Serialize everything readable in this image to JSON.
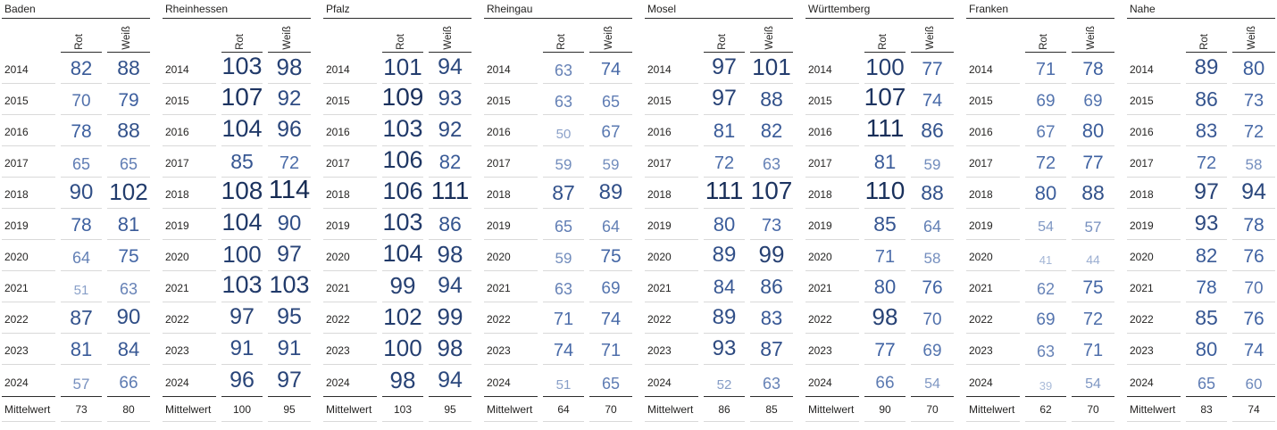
{
  "labels": {
    "mittelwert": "Mittelwert",
    "col_rot": "Rot",
    "col_weiss": "Weiß"
  },
  "colors": {
    "text": "#252423",
    "grid_dark": "#2b2b2b",
    "grid_light": "#d9d9d9",
    "value_scale_low": "#AABBD9",
    "value_scale_mid": "#3F62A3",
    "value_scale_high": "#152A52"
  },
  "chart_data": {
    "type": "table",
    "title": "",
    "columns": [
      "Rot",
      "Weiß"
    ],
    "years": [
      "2014",
      "2015",
      "2016",
      "2017",
      "2018",
      "2019",
      "2020",
      "2021",
      "2022",
      "2023",
      "2024"
    ],
    "value_range": [
      39,
      114
    ],
    "layout": {
      "panels_side_by_side": true,
      "value_font_scaled": true,
      "value_color_scaled": true
    },
    "regions": [
      {
        "name": "Baden",
        "rot": [
          82,
          70,
          78,
          65,
          90,
          78,
          64,
          51,
          87,
          81,
          57
        ],
        "weiss": [
          88,
          79,
          88,
          65,
          102,
          81,
          75,
          63,
          90,
          84,
          66
        ],
        "mittelwert_rot": 73,
        "mittelwert_weiss": 80
      },
      {
        "name": "Rheinhessen",
        "rot": [
          103,
          107,
          104,
          85,
          108,
          104,
          100,
          103,
          97,
          91,
          96
        ],
        "weiss": [
          98,
          92,
          96,
          72,
          114,
          90,
          97,
          103,
          95,
          91,
          97
        ],
        "mittelwert_rot": 100,
        "mittelwert_weiss": 95
      },
      {
        "name": "Pfalz",
        "rot": [
          101,
          109,
          103,
          106,
          106,
          103,
          104,
          99,
          102,
          100,
          98
        ],
        "weiss": [
          94,
          93,
          92,
          82,
          111,
          86,
          98,
          94,
          99,
          98,
          94
        ],
        "mittelwert_rot": 103,
        "mittelwert_weiss": 95
      },
      {
        "name": "Rheingau",
        "rot": [
          63,
          63,
          50,
          59,
          87,
          65,
          59,
          63,
          71,
          74,
          51
        ],
        "weiss": [
          74,
          65,
          67,
          59,
          89,
          64,
          75,
          69,
          74,
          71,
          65
        ],
        "mittelwert_rot": 64,
        "mittelwert_weiss": 70
      },
      {
        "name": "Mosel",
        "rot": [
          97,
          97,
          81,
          72,
          111,
          80,
          89,
          84,
          89,
          93,
          52
        ],
        "weiss": [
          101,
          88,
          82,
          63,
          107,
          73,
          99,
          86,
          83,
          87,
          63
        ],
        "mittelwert_rot": 86,
        "mittelwert_weiss": 85
      },
      {
        "name": "Württemberg",
        "rot": [
          100,
          107,
          111,
          81,
          110,
          85,
          71,
          80,
          98,
          77,
          66
        ],
        "weiss": [
          77,
          74,
          86,
          59,
          88,
          64,
          58,
          76,
          70,
          69,
          54
        ],
        "mittelwert_rot": 90,
        "mittelwert_weiss": 70
      },
      {
        "name": "Franken",
        "rot": [
          71,
          69,
          67,
          72,
          80,
          54,
          41,
          62,
          69,
          63,
          39
        ],
        "weiss": [
          78,
          69,
          80,
          77,
          88,
          57,
          44,
          75,
          72,
          71,
          54
        ],
        "mittelwert_rot": 62,
        "mittelwert_weiss": 70
      },
      {
        "name": "Nahe",
        "rot": [
          89,
          86,
          83,
          72,
          97,
          93,
          82,
          78,
          85,
          80,
          65
        ],
        "weiss": [
          80,
          73,
          72,
          58,
          94,
          78,
          76,
          70,
          76,
          74,
          60
        ],
        "mittelwert_rot": 83,
        "mittelwert_weiss": 74
      }
    ]
  }
}
